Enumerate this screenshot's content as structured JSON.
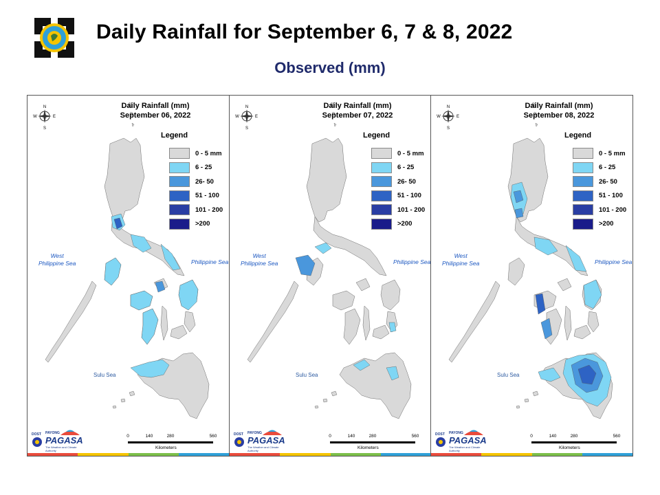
{
  "title": "Daily Rainfall for September 6, 7 & 8, 2022",
  "subtitle": "Observed (mm)",
  "legend": {
    "heading": "Legend",
    "items": [
      {
        "label": "0 - 5 mm",
        "color": "#d9d9d9"
      },
      {
        "label": "6 - 25",
        "color": "#7fd6f4"
      },
      {
        "label": "26- 50",
        "color": "#4a97dc"
      },
      {
        "label": "51 - 100",
        "color": "#2e63c4"
      },
      {
        "label": "101 - 200",
        "color": "#2a3ea3"
      },
      {
        "label": ">200",
        "color": "#1a1c8a"
      }
    ]
  },
  "seas": {
    "west": "West\nPhilippine Sea",
    "east": "Philippine Sea",
    "sulu": "Sulu Sea"
  },
  "scale": {
    "ticks": [
      "0",
      "140",
      "280",
      "560"
    ],
    "unit": "Kilometers"
  },
  "brand": {
    "name": "PAGASA",
    "dost": "DOST",
    "payong": "PAYONG",
    "tagline": "The Weather and Climate Authority"
  },
  "compass": {
    "n": "N",
    "s": "S",
    "e": "E",
    "w": "W"
  },
  "panels": [
    {
      "title": "Daily Rainfall (mm)",
      "date": "September 06, 2022"
    },
    {
      "title": "Daily Rainfall (mm)",
      "date": "September 07, 2022"
    },
    {
      "title": "Daily Rainfall (mm)",
      "date": "September 08, 2022"
    }
  ]
}
